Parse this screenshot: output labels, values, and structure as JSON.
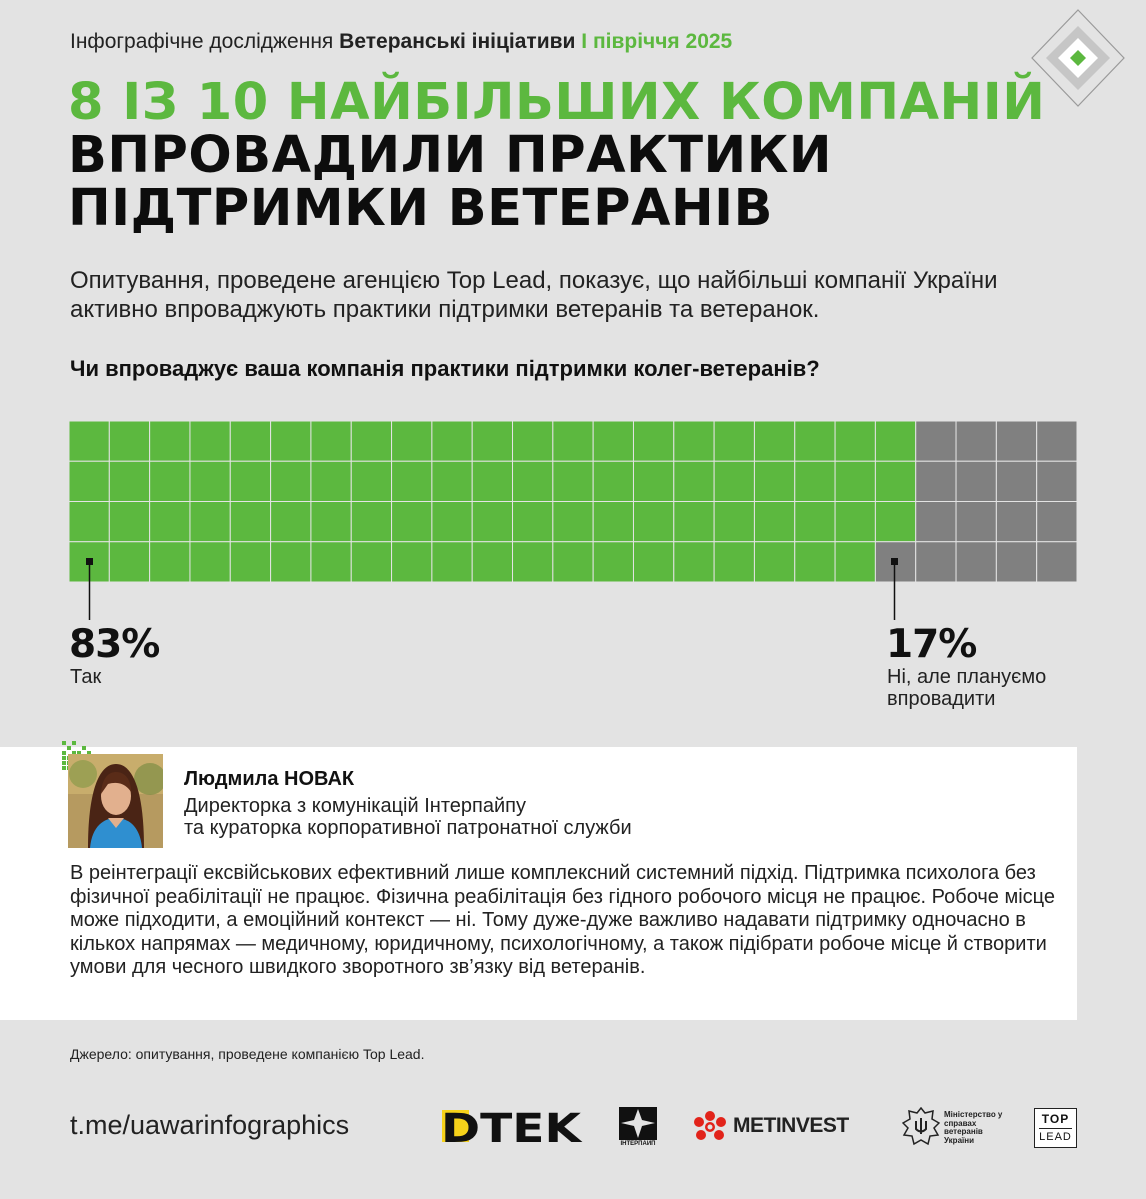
{
  "header": {
    "kicker_prefix": "Інфографічне дослідження",
    "kicker_series": "Ветеранські ініціативи",
    "kicker_period": "I півріччя 2025",
    "headline_line1": "8 із 10 найбільших компаній",
    "headline_line2": "впровадили практики",
    "headline_line3": "підтримки ветеранів"
  },
  "lead": "Опитування, проведене агенцією Top Lead, показує, що найбільші компанії України активно впроваджують практики підтримки ветеранів та ветеранок.",
  "question": "Чи впроваджує ваша компанія практики підтримки колег-ветеранів?",
  "chart_data": {
    "type": "waffle",
    "grid": {
      "cols": 25,
      "rows": 4
    },
    "series": [
      {
        "name": "Так",
        "value": 83,
        "unit": "%",
        "color": "#5cb83f"
      },
      {
        "name": "Ні, але плануємо впровадити",
        "value": 17,
        "unit": "%",
        "color": "#808080"
      }
    ]
  },
  "results": {
    "yes_value": "83%",
    "yes_label": "Так",
    "no_value": "17%",
    "no_label_line1": "Ні, але плануємо",
    "no_label_line2": "впровадити"
  },
  "quote": {
    "name": "Людмила НОВАК",
    "role_line1": "Директорка з комунікацій Інтерпайпу",
    "role_line2": "та кураторка корпоративної патронатної служби",
    "text": "В реінтеграції ексвійськових ефективний лише комплексний системний підхід. Підтримка психолога без фізичної реабілітації не працює. Фізична реабілітація без гідного робочого місця не працює. Робоче місце може підходити, а емоційний контекст — ні. Тому дуже-дуже важливо надавати підтримку одночасно в кількох напрямах — медичному, юридичному, психологічному, а також підібрати робоче місце й створити умови для чесного швидкого зворотного зв’язку від ветеранів."
  },
  "source": "Джерело: опитування, проведене компанією Top Lead.",
  "footer": {
    "link": "t.me/uawarinfographics",
    "logos": {
      "dtek": "DTEK",
      "interpipe": "ІНТЕРПАЙП",
      "metinvest": "METINVEST",
      "ministry": "Міністерство у справах ветеранів України",
      "toplead_line1": "TOP",
      "toplead_line2": "LEAD"
    }
  },
  "colors": {
    "accent": "#5cb83f",
    "secondary": "#808080",
    "background": "#e3e3e3",
    "dtek_yellow": "#f6d21a",
    "metinvest_red": "#e2231a"
  },
  "icons": {
    "corner": "diamond-logo-icon",
    "pixel": "pixel-mark-icon",
    "metinvest": "flower-logo-icon",
    "ministry": "trident-emblem-icon"
  }
}
